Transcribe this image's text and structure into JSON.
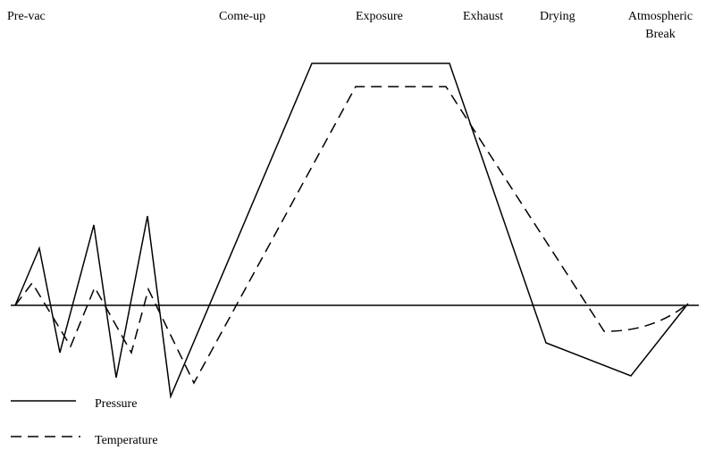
{
  "phases": [
    "Pre-vac",
    "Come-up",
    "Exposure",
    "Exhaust",
    "Drying",
    "Atmospheric Break"
  ],
  "legend": [
    "Pressure",
    "Temperature"
  ]
}
